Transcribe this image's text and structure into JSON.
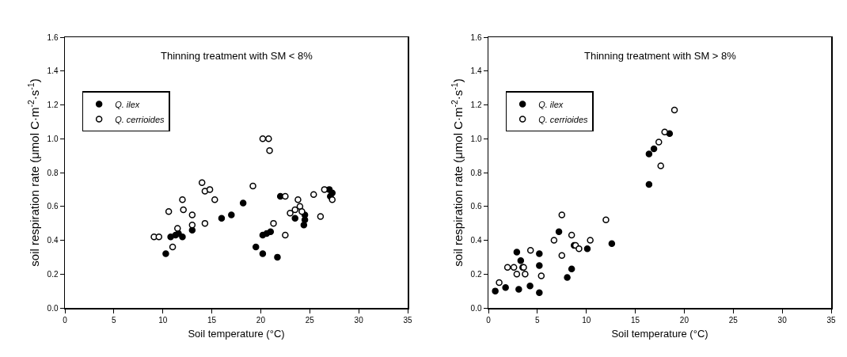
{
  "chart_data": [
    {
      "type": "scatter",
      "title": "Thinning treatment with SM < 8%",
      "xlabel": "Soil temperature (°C)",
      "ylabel": "soil respiration rate (μmol C·m$^{-2}$·s$^{-1}$)",
      "xlim": [
        0,
        35
      ],
      "xticks": [
        0,
        5,
        10,
        15,
        20,
        25,
        30,
        35
      ],
      "ylim": [
        0,
        1.6
      ],
      "yticks": [
        {
          "value": 0,
          "label": "0.0"
        },
        {
          "value": 0.2,
          "label": "0.2"
        },
        {
          "value": 0.4,
          "label": "0.4"
        },
        {
          "value": 0.6,
          "label": "0.6"
        },
        {
          "value": 0.8,
          "label": "0.8"
        },
        {
          "value": 1.0,
          "label": "1.0"
        },
        {
          "value": 1.2,
          "label": "1.2"
        },
        {
          "value": 1.4,
          "label": "1.4"
        },
        {
          "value": 1.6,
          "label": "1.6"
        }
      ],
      "grid": false,
      "legend": "top left",
      "marker": "circle",
      "series": [
        {
          "name": "Q. ilex",
          "color": "#000000",
          "x": [
            10.3,
            10.8,
            11.3,
            11.6,
            12.0,
            13.0,
            16.0,
            17.0,
            18.2,
            19.5,
            20.2,
            20.2,
            20.6,
            21.0,
            21.7,
            22.0,
            23.5,
            24.4,
            24.5,
            24.5,
            27.0,
            27.3,
            27.1
          ],
          "values": [
            0.32,
            0.42,
            0.43,
            0.44,
            0.42,
            0.46,
            0.53,
            0.55,
            0.62,
            0.36,
            0.32,
            0.43,
            0.44,
            0.45,
            0.3,
            0.66,
            0.53,
            0.49,
            0.52,
            0.55,
            0.7,
            0.68,
            0.66
          ]
        },
        {
          "name": "Q. cerrioides",
          "color": "#ffffff",
          "x": [
            9.1,
            9.6,
            10.6,
            11.0,
            11.5,
            12.0,
            12.1,
            13.0,
            13.0,
            14.0,
            14.3,
            14.8,
            15.3,
            14.3,
            19.2,
            20.2,
            20.8,
            20.9,
            21.3,
            22.5,
            22.5,
            23.0,
            23.5,
            23.8,
            24.0,
            24.2,
            25.4,
            26.1,
            26.5,
            27.3
          ],
          "values": [
            0.42,
            0.42,
            0.57,
            0.36,
            0.47,
            0.64,
            0.58,
            0.55,
            0.49,
            0.74,
            0.69,
            0.7,
            0.64,
            0.5,
            0.72,
            1.0,
            1.0,
            0.93,
            0.5,
            0.66,
            0.43,
            0.56,
            0.58,
            0.64,
            0.6,
            0.57,
            0.67,
            0.54,
            0.7,
            0.64
          ]
        }
      ]
    },
    {
      "type": "scatter",
      "title": "Thinning treatment with SM > 8%",
      "xlabel": "Soil temperature (°C)",
      "ylabel": "soil respiration rate (μmol C·m$^{-2}$·s$^{-1}$)",
      "xlim": [
        0,
        35
      ],
      "xticks": [
        0,
        5,
        10,
        15,
        20,
        25,
        30,
        35
      ],
      "ylim": [
        0,
        1.6
      ],
      "yticks": [
        {
          "value": 0,
          "label": "0.0"
        },
        {
          "value": 0.2,
          "label": "0.2"
        },
        {
          "value": 0.4,
          "label": "0.4"
        },
        {
          "value": 0.6,
          "label": "0.6"
        },
        {
          "value": 0.8,
          "label": "0.8"
        },
        {
          "value": 1.0,
          "label": "1.0"
        },
        {
          "value": 1.2,
          "label": "1.2"
        },
        {
          "value": 1.4,
          "label": "1.4"
        },
        {
          "value": 1.6,
          "label": "1.6"
        }
      ],
      "grid": false,
      "legend": "top left",
      "marker": "circle",
      "series": [
        {
          "name": "Q. ilex",
          "color": "#000000",
          "x": [
            0.7,
            1.75,
            3.1,
            4.25,
            5.2,
            2.9,
            3.3,
            3.5,
            5.2,
            5.2,
            7.2,
            8.05,
            8.5,
            10.1,
            8.75,
            12.6,
            16.4,
            16.4,
            16.9,
            18.5
          ],
          "values": [
            0.1,
            0.12,
            0.11,
            0.13,
            0.09,
            0.33,
            0.28,
            0.24,
            0.32,
            0.25,
            0.45,
            0.18,
            0.23,
            0.35,
            0.37,
            0.38,
            0.73,
            0.91,
            0.94,
            1.03
          ]
        },
        {
          "name": "Q. cerrioides",
          "color": "#ffffff",
          "x": [
            1.1,
            1.95,
            2.6,
            2.9,
            3.6,
            3.75,
            4.3,
            5.4,
            6.7,
            7.5,
            7.5,
            8.5,
            8.9,
            9.25,
            10.4,
            12.0,
            17.4,
            17.6,
            18.0,
            19.0
          ],
          "values": [
            0.15,
            0.24,
            0.24,
            0.2,
            0.24,
            0.2,
            0.34,
            0.19,
            0.4,
            0.55,
            0.31,
            0.43,
            0.37,
            0.35,
            0.4,
            0.52,
            0.98,
            0.84,
            1.04,
            1.17
          ]
        }
      ]
    }
  ]
}
